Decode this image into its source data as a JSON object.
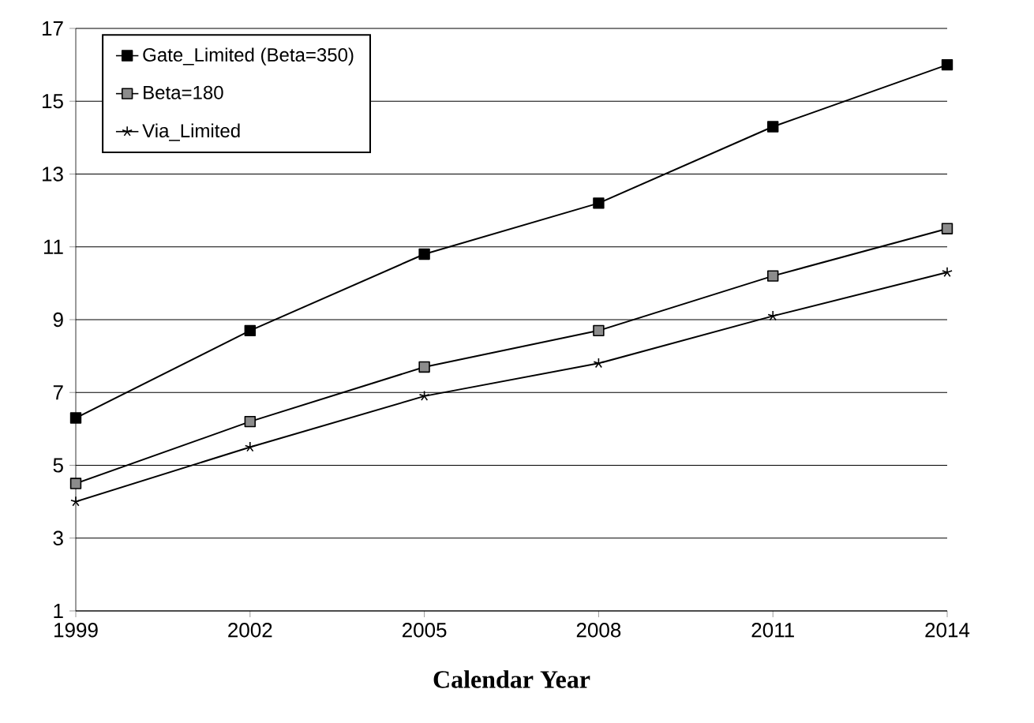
{
  "chart_data": {
    "type": "line",
    "xlabel": "Calendar Year",
    "x": [
      1999,
      2002,
      2005,
      2008,
      2011,
      2014
    ],
    "xlim": [
      1999,
      2014
    ],
    "xticks": [
      1999,
      2002,
      2005,
      2008,
      2011,
      2014
    ],
    "ylim": [
      1,
      17
    ],
    "yticks": [
      1,
      3,
      5,
      7,
      9,
      11,
      13,
      15,
      17
    ],
    "grid": "y",
    "legend": "top left",
    "line_style": "solid",
    "series": [
      {
        "name": "Gate_Limited (Beta=350)",
        "color": "#000000",
        "marker": "square",
        "values": [
          6.3,
          8.7,
          10.8,
          12.2,
          14.3,
          16.0
        ]
      },
      {
        "name": "Beta=180",
        "color": "#000000",
        "marker": "square",
        "values": [
          4.5,
          6.2,
          7.7,
          8.7,
          10.2,
          11.5
        ]
      },
      {
        "name": "Via_Limited",
        "color": "#000000",
        "marker": "cross",
        "values": [
          4.0,
          5.5,
          6.9,
          7.8,
          9.1,
          10.3
        ]
      }
    ]
  }
}
